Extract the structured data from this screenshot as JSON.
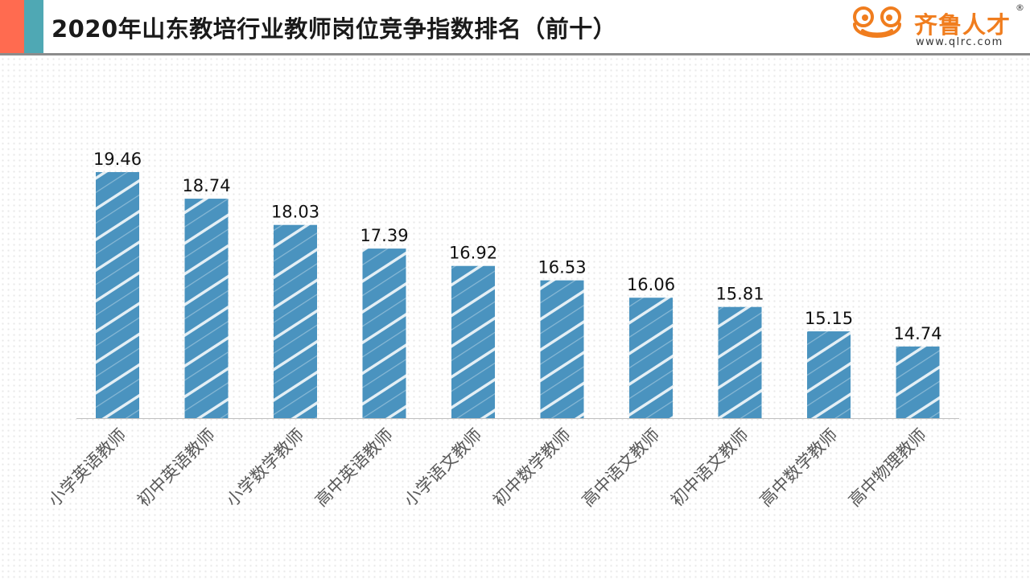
{
  "header": {
    "title": "2020年山东教培行业教师岗位竞争指数排名（前十）"
  },
  "logo": {
    "name": "齐鲁人才",
    "url": "www.qlrc.com",
    "reg": "®",
    "icon": "frog-mascot-icon"
  },
  "colors": {
    "accent_red": "#FF6B50",
    "accent_teal": "#4FA8B4",
    "bar": "#4A93BF",
    "logo_orange": "#F07D1E"
  },
  "chart_data": {
    "type": "bar",
    "title": "2020年山东教培行业教师岗位竞争指数排名（前十）",
    "categories": [
      "小学英语教师",
      "初中英语教师",
      "小学数学教师",
      "高中英语教师",
      "小学语文教师",
      "初中数学教师",
      "高中语文教师",
      "初中语文教师",
      "高中数学教师",
      "高中物理教师"
    ],
    "values": [
      19.46,
      18.74,
      18.03,
      17.39,
      16.92,
      16.53,
      16.06,
      15.81,
      15.15,
      14.74
    ],
    "xlabel": "",
    "ylabel": "",
    "ylim": [
      12.8,
      20.0
    ],
    "grid": false,
    "legend": "none",
    "data_labels": true
  }
}
